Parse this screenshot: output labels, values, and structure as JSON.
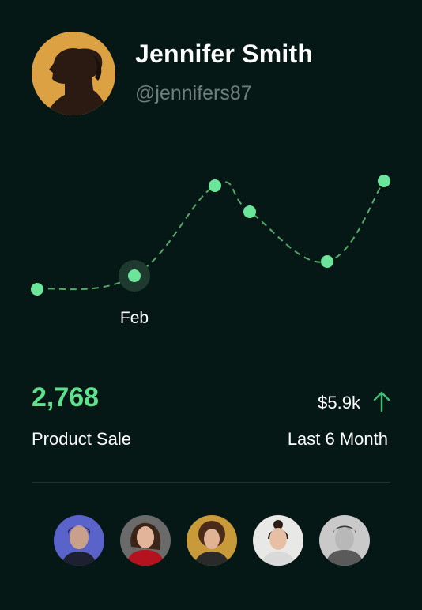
{
  "profile": {
    "name": "Jennifer Smith",
    "handle": "@jennifers87",
    "avatar_icon": "profile-photo"
  },
  "chart_data": {
    "type": "line",
    "x": [
      "",
      "Feb",
      "",
      "",
      "",
      ""
    ],
    "values": [
      366,
      349,
      235,
      268,
      331,
      229
    ],
    "highlighted_label": "Feb",
    "color": "#6be59a",
    "line_style": "dashed"
  },
  "stats": {
    "product_sale_value": "2,768",
    "product_sale_label": "Product Sale",
    "amount": "$5.9k",
    "period_label": "Last 6 Month",
    "trend_icon": "arrow-up-icon",
    "accent_color": "#5ee08f"
  },
  "team": {
    "members": [
      {
        "icon": "avatar-member-1",
        "bg": "#5a63c9"
      },
      {
        "icon": "avatar-member-2",
        "bg": "#6a6a6a"
      },
      {
        "icon": "avatar-member-3",
        "bg": "#c99a3a"
      },
      {
        "icon": "avatar-member-4",
        "bg": "#e8e8e6"
      },
      {
        "icon": "avatar-member-5",
        "bg": "#c9c9c9"
      }
    ]
  }
}
